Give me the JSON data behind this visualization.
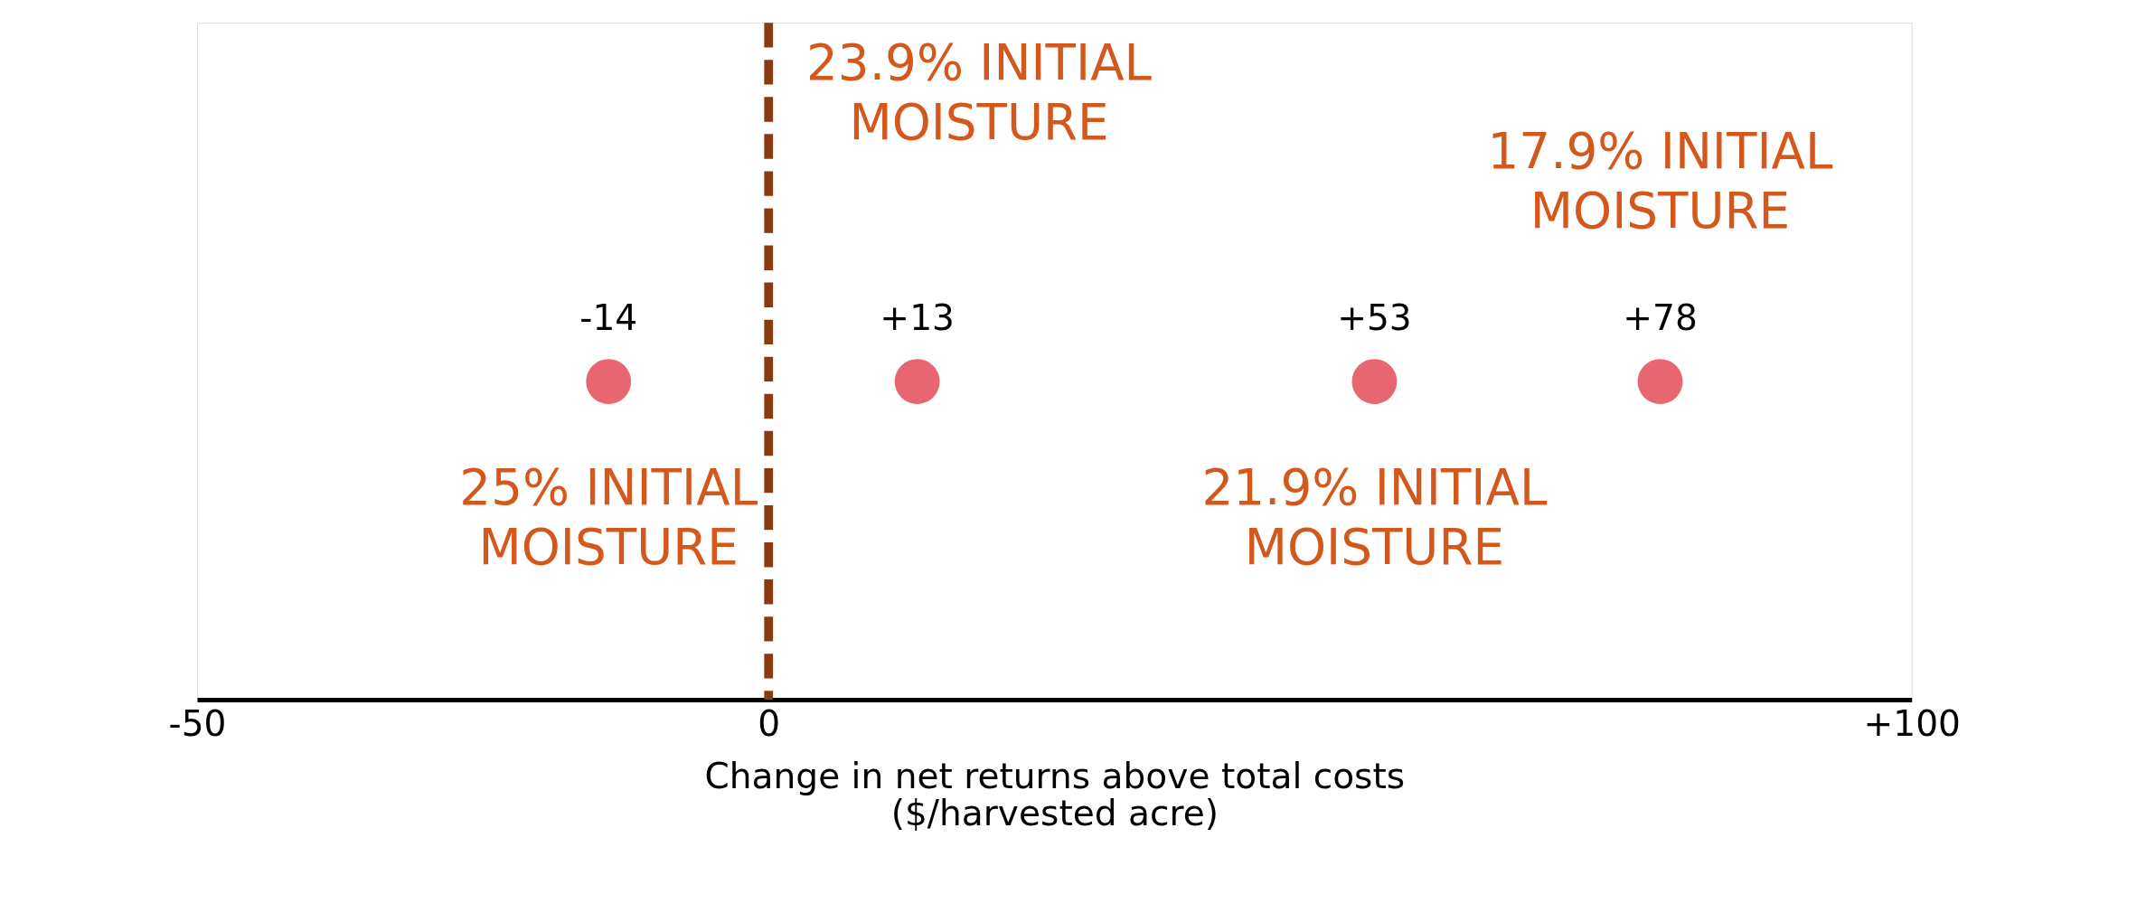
{
  "chart_data": {
    "type": "scatter",
    "orientation": "horizontal",
    "categories": [
      null
    ],
    "series": [
      {
        "color": "#e8666f",
        "values": [
          -14
        ],
        "value_labels": [
          "-14"
        ]
      },
      {
        "color": "#e8666f",
        "values": [
          13
        ],
        "value_labels": [
          "+13"
        ]
      },
      {
        "color": "#e8666f",
        "values": [
          53
        ],
        "value_labels": [
          "+53"
        ]
      },
      {
        "color": "#e8666f",
        "values": [
          78
        ],
        "value_labels": [
          "+78"
        ]
      }
    ],
    "marker": "circle",
    "xlabel": "Change in net returns above total costs\n($/harvested acre)",
    "xlim": [
      -50,
      100
    ],
    "xticks": [
      {
        "value": -50,
        "label": "-50"
      },
      {
        "value": 0,
        "label": "0"
      },
      {
        "value": 100,
        "label": "+100"
      }
    ],
    "tick_labels": "x",
    "grid": false,
    "legend": false,
    "ref_lines": [
      {
        "axis": "x",
        "value": 0,
        "label": null,
        "color": "#8b3a0f",
        "line_style": "dashed"
      }
    ],
    "annotations": [
      "25% INITIAL\nMOISTURE",
      "23.9% INITIAL\nMOISTURE",
      "21.9% INITIAL\nMOISTURE",
      "17.9% INITIAL\nMOISTURE"
    ]
  }
}
